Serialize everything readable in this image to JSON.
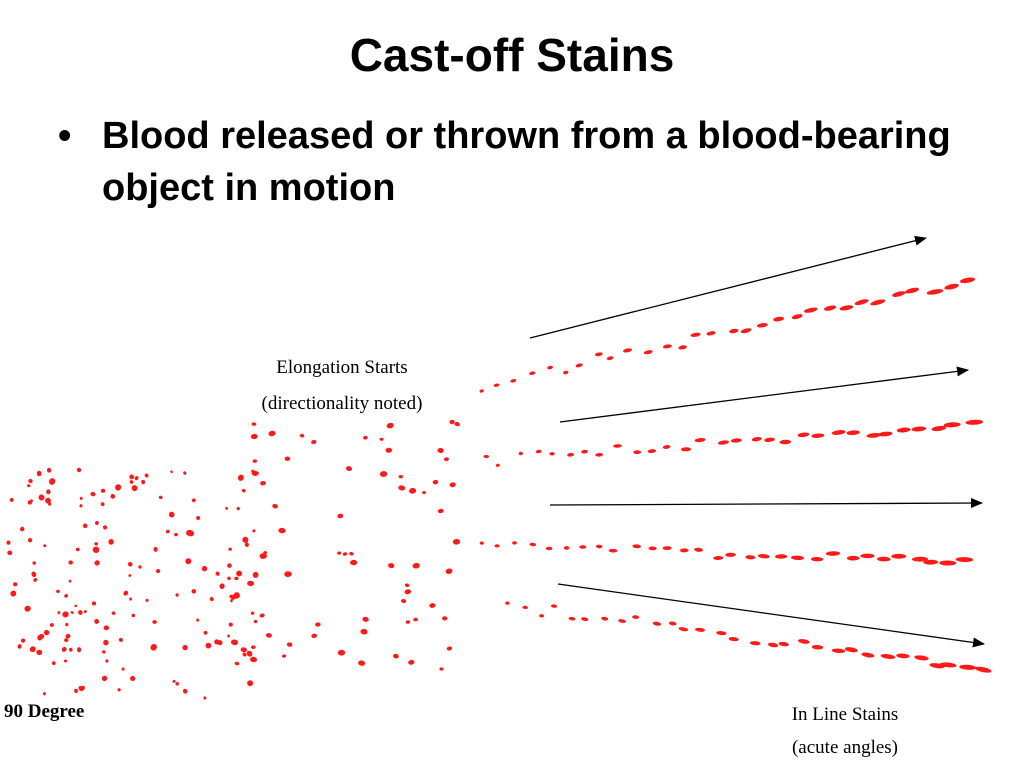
{
  "slide": {
    "title": "Cast-off Stains",
    "bullet": "Blood released or thrown from a blood-bearing object in motion"
  },
  "diagram": {
    "label_elongation_line1": "Elongation Starts",
    "label_elongation_line2": "(directionality noted)",
    "label_90": "90 Degree",
    "label_inline_line1": "In Line Stains",
    "label_inline_line2": "(acute angles)",
    "stain_color": "#ff1a1a",
    "arrow_color": "#000000"
  }
}
